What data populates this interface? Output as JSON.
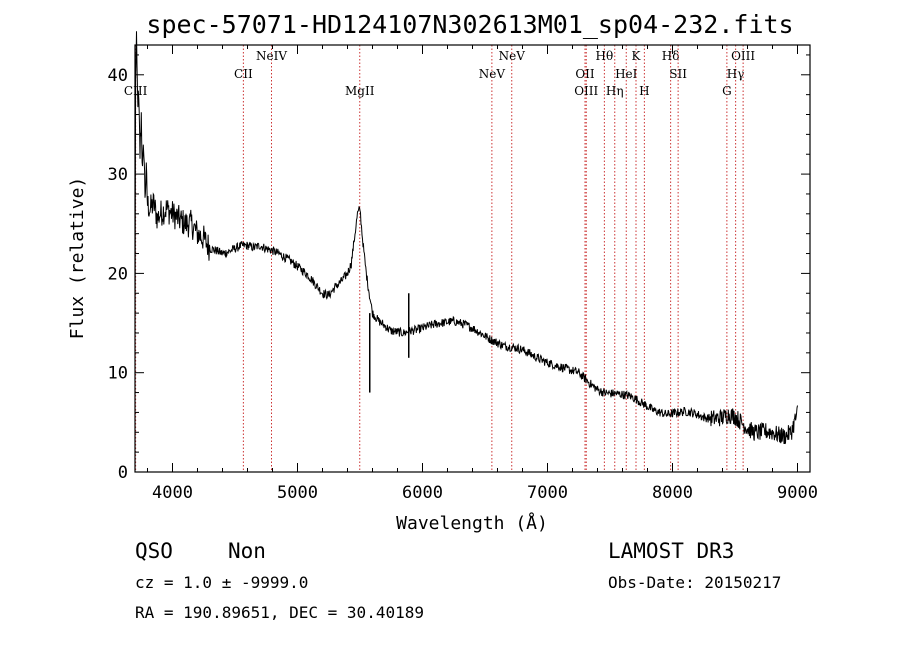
{
  "chart_data": {
    "type": "line",
    "title": "spec-57071-HD124107N302613M01_sp04-232.fits",
    "xlabel": "Wavelength (Å)",
    "ylabel": "Flux (relative)",
    "xlim": [
      3700,
      9100
    ],
    "ylim": [
      0,
      43
    ],
    "x_ticks": [
      4000,
      5000,
      6000,
      7000,
      8000,
      9000
    ],
    "y_ticks": [
      0,
      10,
      20,
      30,
      40
    ],
    "grid": false,
    "series": [
      {
        "values": [
          [
            3700,
            13
          ],
          [
            3705,
            40
          ],
          [
            3712,
            43
          ],
          [
            3720,
            38
          ],
          [
            3730,
            37
          ],
          [
            3740,
            32
          ],
          [
            3750,
            36
          ],
          [
            3760,
            30
          ],
          [
            3770,
            33
          ],
          [
            3780,
            28
          ],
          [
            3790,
            30
          ],
          [
            3800,
            27
          ],
          [
            3820,
            26.5
          ],
          [
            3850,
            27
          ],
          [
            3880,
            25.5
          ],
          [
            3900,
            26
          ],
          [
            3950,
            26.5
          ],
          [
            4000,
            26
          ],
          [
            4050,
            25.5
          ],
          [
            4100,
            25
          ],
          [
            4150,
            25
          ],
          [
            4200,
            24
          ],
          [
            4250,
            23.5
          ],
          [
            4300,
            22.5
          ],
          [
            4350,
            22.3
          ],
          [
            4400,
            22
          ],
          [
            4450,
            22.2
          ],
          [
            4500,
            22.5
          ],
          [
            4550,
            22.8
          ],
          [
            4600,
            22.8
          ],
          [
            4650,
            22.6
          ],
          [
            4700,
            22.8
          ],
          [
            4750,
            22.5
          ],
          [
            4800,
            22.3
          ],
          [
            4850,
            22
          ],
          [
            4900,
            21.6
          ],
          [
            4950,
            21.2
          ],
          [
            5000,
            20.7
          ],
          [
            5050,
            20.2
          ],
          [
            5100,
            19.6
          ],
          [
            5150,
            18.8
          ],
          [
            5200,
            18
          ],
          [
            5250,
            17.8
          ],
          [
            5300,
            18.6
          ],
          [
            5350,
            19.2
          ],
          [
            5400,
            20
          ],
          [
            5430,
            21
          ],
          [
            5460,
            24
          ],
          [
            5480,
            26
          ],
          [
            5500,
            26.5
          ],
          [
            5520,
            23.5
          ],
          [
            5550,
            20
          ],
          [
            5580,
            17.5
          ],
          [
            5600,
            16
          ],
          [
            5650,
            15.2
          ],
          [
            5700,
            14.7
          ],
          [
            5750,
            14.2
          ],
          [
            5800,
            14.1
          ],
          [
            5850,
            14
          ],
          [
            5900,
            14.2
          ],
          [
            5950,
            14.3
          ],
          [
            6000,
            14.5
          ],
          [
            6050,
            14.7
          ],
          [
            6100,
            14.9
          ],
          [
            6150,
            15
          ],
          [
            6200,
            15.1
          ],
          [
            6250,
            15.2
          ],
          [
            6300,
            15
          ],
          [
            6350,
            14.8
          ],
          [
            6400,
            14.5
          ],
          [
            6450,
            14.1
          ],
          [
            6500,
            13.7
          ],
          [
            6550,
            13.3
          ],
          [
            6600,
            13
          ],
          [
            6650,
            12.7
          ],
          [
            6700,
            12.6
          ],
          [
            6750,
            12.5
          ],
          [
            6800,
            12.3
          ],
          [
            6850,
            12
          ],
          [
            6900,
            11.6
          ],
          [
            6950,
            11.3
          ],
          [
            7000,
            11
          ],
          [
            7050,
            10.8
          ],
          [
            7100,
            10.6
          ],
          [
            7150,
            10.4
          ],
          [
            7200,
            10.2
          ],
          [
            7250,
            10
          ],
          [
            7300,
            9.4
          ],
          [
            7350,
            8.8
          ],
          [
            7400,
            8.3
          ],
          [
            7450,
            8
          ],
          [
            7500,
            7.9
          ],
          [
            7550,
            7.9
          ],
          [
            7600,
            7.8
          ],
          [
            7650,
            7.7
          ],
          [
            7700,
            7.4
          ],
          [
            7750,
            7
          ],
          [
            7800,
            6.6
          ],
          [
            7850,
            6.2
          ],
          [
            7900,
            6
          ],
          [
            7950,
            5.8
          ],
          [
            8000,
            5.9
          ],
          [
            8050,
            6
          ],
          [
            8100,
            6.1
          ],
          [
            8150,
            6
          ],
          [
            8200,
            5.8
          ],
          [
            8250,
            5.5
          ],
          [
            8300,
            5.4
          ],
          [
            8350,
            5.4
          ],
          [
            8400,
            5.5
          ],
          [
            8450,
            5.8
          ],
          [
            8500,
            5.6
          ],
          [
            8550,
            5
          ],
          [
            8600,
            4.4
          ],
          [
            8650,
            4
          ],
          [
            8700,
            4
          ],
          [
            8750,
            4.1
          ],
          [
            8800,
            4
          ],
          [
            8850,
            3.7
          ],
          [
            8900,
            3.6
          ],
          [
            8950,
            4
          ],
          [
            9000,
            6
          ]
        ]
      }
    ],
    "spikes": [
      {
        "x": 5578,
        "y_top": 16,
        "y_bottom": 8
      },
      {
        "x": 5890,
        "y_top": 18,
        "y_bottom": 11.5
      }
    ],
    "line_markers": [
      {
        "name": "CIII",
        "x": 3705,
        "row": 2
      },
      {
        "name": "CII",
        "x": 4567,
        "row": 1
      },
      {
        "name": "NeIV",
        "x": 4792,
        "row": 0
      },
      {
        "name": "MgII",
        "x": 5498,
        "row": 2
      },
      {
        "name": "NeV",
        "x": 6555,
        "row": 1
      },
      {
        "name": "NeV",
        "x": 6714,
        "row": 0
      },
      {
        "name": "OII",
        "x": 7300,
        "row": 1
      },
      {
        "name": "OIII",
        "x": 7310,
        "row": 2
      },
      {
        "name": "Hθ",
        "x": 7455,
        "row": 0
      },
      {
        "name": "Hη",
        "x": 7538,
        "row": 2
      },
      {
        "name": "HeI",
        "x": 7630,
        "row": 1
      },
      {
        "name": "K",
        "x": 7708,
        "row": 0
      },
      {
        "name": "H",
        "x": 7775,
        "row": 2
      },
      {
        "name": "Hδ",
        "x": 7985,
        "row": 0
      },
      {
        "name": "SII",
        "x": 8045,
        "row": 1
      },
      {
        "name": "G",
        "x": 8435,
        "row": 2
      },
      {
        "name": "Hγ",
        "x": 8505,
        "row": 1
      },
      {
        "name": "OIII",
        "x": 8565,
        "row": 0
      }
    ],
    "marker_color": "#cc3333",
    "line_color": "#000000"
  },
  "info": {
    "class": "QSO",
    "subclass": "Non",
    "survey": "LAMOST DR3",
    "cz": "cz = 1.0 ± -9999.0",
    "obs_date": "Obs-Date: 20150217",
    "radec": "RA = 190.89651, DEC =  30.40189"
  }
}
